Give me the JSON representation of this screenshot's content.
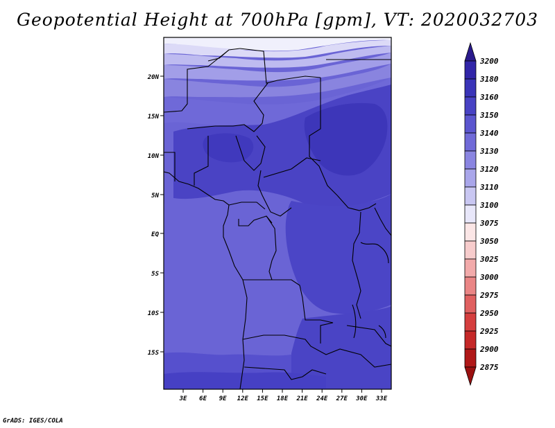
{
  "title": "Geopotential Height at 700hPa [gpm], VT: 2020032703",
  "footer": "GrADS: IGES/COLA",
  "map": {
    "lat_labels": [
      "20N",
      "15N",
      "10N",
      "5N",
      "EQ",
      "5S",
      "10S",
      "15S"
    ],
    "lon_labels": [
      "3E",
      "6E",
      "9E",
      "12E",
      "15E",
      "18E",
      "21E",
      "24E",
      "27E",
      "30E",
      "33E"
    ]
  },
  "colorbar": {
    "levels": [
      "3200",
      "3180",
      "3160",
      "3150",
      "3140",
      "3130",
      "3120",
      "3110",
      "3100",
      "3075",
      "3050",
      "3025",
      "3000",
      "2975",
      "2950",
      "2925",
      "2900",
      "2875"
    ],
    "colors": [
      "#2a1a8c",
      "#3125a8",
      "#3a34b8",
      "#4842c4",
      "#5b55cf",
      "#706ad8",
      "#8a85e1",
      "#a9a6ea",
      "#c9c7f2",
      "#e8e7fa",
      "#fbe6e6",
      "#f7cccc",
      "#f2aaaa",
      "#ea8585",
      "#e06060",
      "#d53e3e",
      "#c52828",
      "#b01818",
      "#9a1010"
    ]
  }
}
